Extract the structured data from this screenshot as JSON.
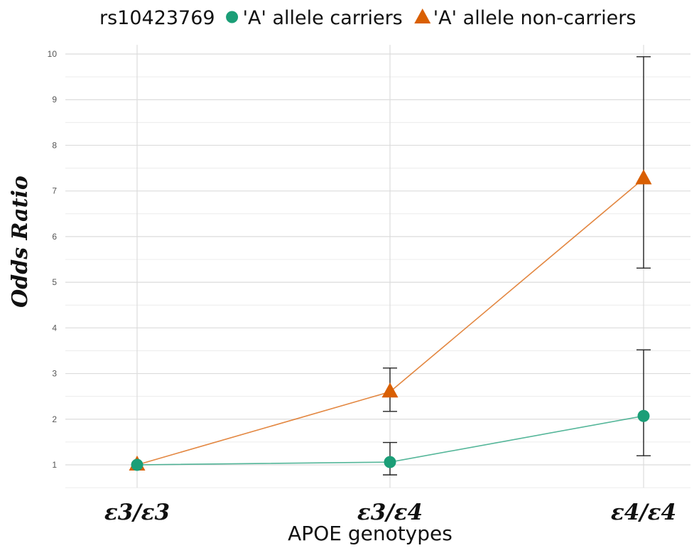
{
  "chart_data": {
    "type": "line",
    "legend": {
      "title": "rs10423769",
      "placement": "top",
      "entries": [
        "'A' allele carriers",
        "'A' allele non-carriers"
      ]
    },
    "xlabel": "APOE genotypes",
    "ylabel": "Odds Ratio",
    "categories": [
      "ε3/ε3",
      "ε3/ε4",
      "ε4/ε4"
    ],
    "yticks": [
      1,
      2,
      3,
      4,
      5,
      6,
      7,
      8,
      9,
      10
    ],
    "ylim": [
      0.5,
      10.2
    ],
    "grid": true,
    "series": [
      {
        "name": "'A' allele carriers",
        "marker": "circle",
        "color": "#1b9e77",
        "values": [
          1.0,
          1.06,
          2.07
        ],
        "ci_low": [
          null,
          0.78,
          1.2
        ],
        "ci_high": [
          null,
          1.49,
          3.52
        ]
      },
      {
        "name": "'A' allele non-carriers",
        "marker": "triangle",
        "color": "#d95f02",
        "values": [
          1.0,
          2.6,
          7.27
        ],
        "ci_low": [
          null,
          2.17,
          5.31
        ],
        "ci_high": [
          null,
          3.12,
          9.94
        ]
      }
    ]
  }
}
